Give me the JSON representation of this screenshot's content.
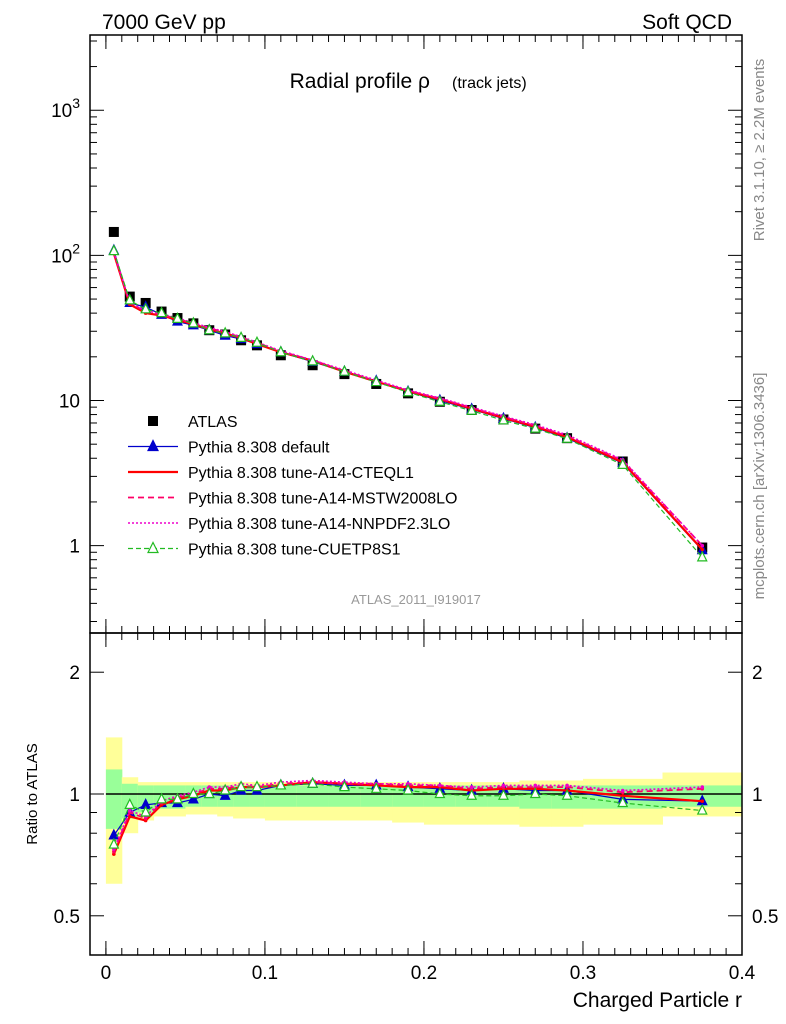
{
  "header": {
    "left": "7000 GeV pp",
    "right": "Soft QCD"
  },
  "side": {
    "rivet": "Rivet 3.1.10, ≥ 2.2M events",
    "mcplots": "mcplots.cern.ch [arXiv:1306.3436]"
  },
  "plot": {
    "title_main": "Radial profile ρ",
    "title_sub": "(track jets)",
    "analysis_tag": "ATLAS_2011_I919017",
    "xlabel": "Charged Particle r",
    "ratio_ylabel": "Ratio to ATLAS"
  },
  "colors": {
    "atlas": "#000000",
    "default": "#0000cc",
    "a14_cteql1": "#ff0000",
    "a14_mstw": "#ff0066",
    "a14_nnpdf": "#ee00cc",
    "cuetp8s1": "#22bb22",
    "band_inner": "#99ff99",
    "band_outer": "#ffff99"
  },
  "chart_data": [
    {
      "type": "scatter",
      "panel": "main",
      "yscale": "log",
      "xlim": [
        -0.01,
        0.4
      ],
      "ylim": [
        0.25,
        3300
      ],
      "x_ticks": [
        0,
        0.1,
        0.2,
        0.3,
        0.4
      ],
      "y_ticks": [
        {
          "value": 1,
          "label": "1"
        },
        {
          "value": 10,
          "label": "10"
        },
        {
          "value": 100,
          "label": "10^2"
        },
        {
          "value": 1000,
          "label": "10^3"
        }
      ],
      "x": [
        0.005,
        0.015,
        0.025,
        0.035,
        0.045,
        0.055,
        0.065,
        0.075,
        0.085,
        0.095,
        0.11,
        0.13,
        0.15,
        0.17,
        0.19,
        0.21,
        0.23,
        0.25,
        0.27,
        0.29,
        0.325,
        0.375
      ],
      "series": [
        {
          "name": "ATLAS",
          "style": "atlas",
          "values": [
            145,
            52,
            47,
            41,
            37,
            34,
            30.5,
            28.5,
            26,
            24,
            20.5,
            17.5,
            15.2,
            13,
            11.2,
            9.8,
            8.6,
            7.4,
            6.4,
            5.5,
            3.8,
            0.97
          ]
        },
        {
          "name": "Pythia 8.308 default",
          "style": "default",
          "values": [
            108,
            47,
            44,
            39,
            35,
            33,
            30.5,
            28,
            26.5,
            24.5,
            21.5,
            18.5,
            15.8,
            13.6,
            11.5,
            10,
            8.7,
            7.5,
            6.5,
            5.5,
            3.7,
            0.93
          ]
        },
        {
          "name": "Pythia 8.308 tune-A14-CTEQL1",
          "style": "a14_cteql1",
          "values": [
            103,
            46,
            40,
            38.5,
            36,
            33.5,
            31,
            29,
            27,
            24.5,
            21.5,
            18.8,
            15.8,
            13.5,
            11.6,
            10.2,
            8.8,
            7.6,
            6.6,
            5.6,
            3.75,
            0.94
          ]
        },
        {
          "name": "Pythia 8.308 tune-A14-MSTW2008LO",
          "style": "a14_mstw",
          "values": [
            104,
            47,
            41,
            39,
            36.5,
            34,
            31.5,
            29.5,
            27.2,
            25,
            21.8,
            18.9,
            16,
            13.6,
            11.7,
            10.3,
            8.9,
            7.7,
            6.7,
            5.7,
            3.85,
            1.0
          ]
        },
        {
          "name": "Pythia 8.308 tune-A14-NNPDF2.3LO",
          "style": "a14_nnpdf",
          "values": [
            105,
            47.5,
            41.5,
            39.5,
            37,
            34.3,
            31.8,
            29.8,
            27.5,
            25.2,
            22,
            19,
            16.2,
            13.8,
            11.8,
            10.4,
            9,
            7.8,
            6.8,
            5.8,
            3.9,
            1.0
          ]
        },
        {
          "name": "Pythia 8.308 tune-CUETP8S1",
          "style": "cuetp8s1",
          "values": [
            107,
            49,
            42.5,
            40,
            36.5,
            34,
            30.5,
            29,
            27,
            25,
            21.5,
            18.6,
            15.8,
            13.4,
            11.4,
            9.8,
            8.5,
            7.3,
            6.4,
            5.45,
            3.6,
            0.83
          ]
        }
      ]
    },
    {
      "type": "line",
      "panel": "ratio",
      "yscale": "log",
      "xlim": [
        -0.01,
        0.4
      ],
      "ylim": [
        0.4,
        2.5
      ],
      "x_ticks": [
        0,
        0.1,
        0.2,
        0.3,
        0.4
      ],
      "y_ticks": [
        {
          "value": 0.5,
          "label": "0.5"
        },
        {
          "value": 1,
          "label": "1"
        },
        {
          "value": 2,
          "label": "2"
        }
      ],
      "bin_edges": [
        0,
        0.01,
        0.02,
        0.03,
        0.04,
        0.05,
        0.06,
        0.07,
        0.08,
        0.09,
        0.1,
        0.12,
        0.14,
        0.16,
        0.18,
        0.2,
        0.22,
        0.24,
        0.26,
        0.28,
        0.3,
        0.35,
        0.4
      ],
      "band_inner": {
        "low": [
          0.82,
          0.87,
          0.9,
          0.92,
          0.92,
          0.93,
          0.93,
          0.93,
          0.93,
          0.93,
          0.93,
          0.93,
          0.93,
          0.93,
          0.93,
          0.93,
          0.93,
          0.93,
          0.92,
          0.92,
          0.92,
          0.93
        ],
        "high": [
          1.15,
          1.06,
          1.05,
          1.05,
          1.05,
          1.05,
          1.05,
          1.05,
          1.05,
          1.05,
          1.05,
          1.05,
          1.05,
          1.05,
          1.05,
          1.05,
          1.05,
          1.05,
          1.05,
          1.05,
          1.05,
          1.05
        ]
      },
      "band_outer": {
        "low": [
          0.6,
          0.8,
          0.86,
          0.88,
          0.88,
          0.89,
          0.89,
          0.88,
          0.87,
          0.87,
          0.86,
          0.86,
          0.86,
          0.86,
          0.85,
          0.84,
          0.84,
          0.84,
          0.83,
          0.83,
          0.84,
          0.88
        ],
        "high": [
          1.38,
          1.1,
          1.07,
          1.07,
          1.07,
          1.07,
          1.07,
          1.07,
          1.07,
          1.07,
          1.07,
          1.07,
          1.07,
          1.07,
          1.07,
          1.07,
          1.07,
          1.07,
          1.08,
          1.08,
          1.09,
          1.13
        ]
      },
      "reference": 1,
      "x": [
        0.005,
        0.015,
        0.025,
        0.035,
        0.045,
        0.055,
        0.065,
        0.075,
        0.085,
        0.095,
        0.11,
        0.13,
        0.15,
        0.17,
        0.19,
        0.21,
        0.23,
        0.25,
        0.27,
        0.29,
        0.325,
        0.375
      ],
      "series": [
        {
          "name": "Pythia 8.308 default",
          "style": "default",
          "values": [
            0.79,
            0.9,
            0.94,
            0.95,
            0.95,
            0.97,
            1.0,
            0.99,
            1.02,
            1.02,
            1.05,
            1.06,
            1.05,
            1.05,
            1.04,
            1.03,
            1.02,
            1.03,
            1.02,
            1.02,
            0.97,
            0.96
          ]
        },
        {
          "name": "Pythia 8.308 tune-A14-CTEQL1",
          "style": "a14_cteql1",
          "values": [
            0.71,
            0.88,
            0.86,
            0.94,
            0.97,
            0.99,
            1.02,
            1.02,
            1.04,
            1.04,
            1.05,
            1.07,
            1.06,
            1.05,
            1.04,
            1.04,
            1.02,
            1.03,
            1.03,
            1.02,
            0.99,
            0.96
          ]
        },
        {
          "name": "Pythia 8.308 tune-A14-MSTW2008LO",
          "style": "a14_mstw",
          "values": [
            0.72,
            0.9,
            0.87,
            0.95,
            0.98,
            1.0,
            1.03,
            1.03,
            1.05,
            1.04,
            1.06,
            1.07,
            1.06,
            1.06,
            1.05,
            1.05,
            1.03,
            1.04,
            1.04,
            1.04,
            1.01,
            1.03
          ]
        },
        {
          "name": "Pythia 8.308 tune-A14-NNPDF2.3LO",
          "style": "a14_nnpdf",
          "values": [
            0.73,
            0.91,
            0.88,
            0.96,
            0.99,
            1.01,
            1.04,
            1.04,
            1.06,
            1.05,
            1.07,
            1.08,
            1.07,
            1.06,
            1.06,
            1.05,
            1.04,
            1.05,
            1.05,
            1.05,
            1.02,
            1.04
          ]
        },
        {
          "name": "Pythia 8.308 tune-CUETP8S1",
          "style": "cuetp8s1",
          "values": [
            0.75,
            0.94,
            0.9,
            0.97,
            0.97,
            1.0,
            1.0,
            1.02,
            1.04,
            1.04,
            1.05,
            1.06,
            1.04,
            1.03,
            1.02,
            1.0,
            0.99,
            0.99,
            1.0,
            0.99,
            0.95,
            0.91
          ]
        }
      ]
    }
  ]
}
